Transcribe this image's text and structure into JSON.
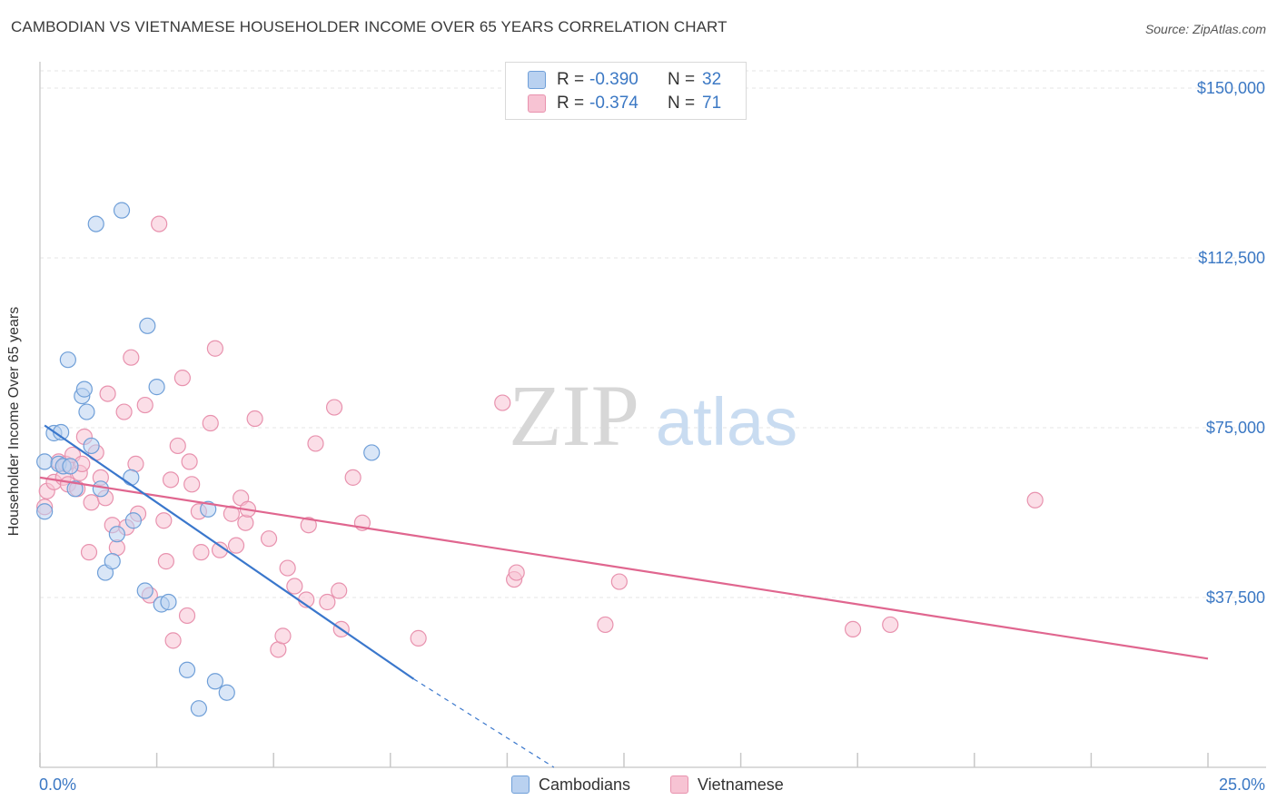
{
  "title": "CAMBODIAN VS VIETNAMESE HOUSEHOLDER INCOME OVER 65 YEARS CORRELATION CHART",
  "source": "Source: ZipAtlas.com",
  "watermark": {
    "zip": "ZIP",
    "atlas": "atlas"
  },
  "stats": {
    "r_label": "R =",
    "n_label": "N =",
    "rows": [
      {
        "r": "-0.390",
        "n": "32"
      },
      {
        "r": "-0.374",
        "n": "71"
      }
    ]
  },
  "colors": {
    "cambodians_fill": "#b9d1f0",
    "cambodians_stroke": "#6f9fd8",
    "cambodians_line": "#3a77cc",
    "vietnamese_fill": "#f7c3d3",
    "vietnamese_stroke": "#e892ae",
    "vietnamese_line": "#e0668f",
    "tick_label": "#3b78c4",
    "grid": "#e5e5e5"
  },
  "chart_data": {
    "type": "scatter",
    "title": "CAMBODIAN VS VIETNAMESE HOUSEHOLDER INCOME OVER 65 YEARS CORRELATION CHART",
    "xlabel": "",
    "ylabel": "Householder Income Over 65 years",
    "xlim": [
      0,
      25
    ],
    "ylim": [
      0,
      150000
    ],
    "x_tick_labels": [
      "0.0%",
      "25.0%"
    ],
    "y_ticks": [
      37500,
      75000,
      112500,
      150000
    ],
    "y_tick_labels": [
      "$37,500",
      "$75,000",
      "$112,500",
      "$150,000"
    ],
    "grid": true,
    "legend_position": "bottom-center",
    "series": [
      {
        "name": "Cambodians",
        "r": -0.39,
        "n": 32,
        "points": [
          [
            0.1,
            56500
          ],
          [
            0.1,
            67500
          ],
          [
            0.3,
            73800
          ],
          [
            0.4,
            67000
          ],
          [
            0.45,
            74000
          ],
          [
            0.5,
            66500
          ],
          [
            0.6,
            90000
          ],
          [
            0.65,
            66500
          ],
          [
            0.75,
            61500
          ],
          [
            0.9,
            82000
          ],
          [
            0.95,
            83500
          ],
          [
            1.0,
            78500
          ],
          [
            1.1,
            71000
          ],
          [
            1.2,
            120000
          ],
          [
            1.3,
            61500
          ],
          [
            1.4,
            43000
          ],
          [
            1.55,
            45500
          ],
          [
            1.65,
            51500
          ],
          [
            1.75,
            123000
          ],
          [
            1.95,
            64000
          ],
          [
            2.0,
            54500
          ],
          [
            2.25,
            39000
          ],
          [
            2.3,
            97500
          ],
          [
            2.5,
            84000
          ],
          [
            2.6,
            36000
          ],
          [
            2.75,
            36500
          ],
          [
            3.15,
            21500
          ],
          [
            3.4,
            13000
          ],
          [
            3.6,
            57000
          ],
          [
            3.75,
            19000
          ],
          [
            4.0,
            16500
          ],
          [
            7.1,
            69500
          ]
        ],
        "trend": {
          "x0": 0.1,
          "y0": 75500,
          "x1": 8.0,
          "y1": 19500,
          "dash_to_x": 11.0
        }
      },
      {
        "name": "Vietnamese",
        "r": -0.374,
        "n": 71,
        "points": [
          [
            0.1,
            57500
          ],
          [
            0.15,
            61000
          ],
          [
            0.3,
            63000
          ],
          [
            0.4,
            67500
          ],
          [
            0.5,
            64000
          ],
          [
            0.55,
            67000
          ],
          [
            0.6,
            62500
          ],
          [
            0.7,
            69000
          ],
          [
            0.8,
            61500
          ],
          [
            0.85,
            65000
          ],
          [
            0.9,
            67000
          ],
          [
            0.95,
            73000
          ],
          [
            1.05,
            47500
          ],
          [
            1.1,
            58500
          ],
          [
            1.2,
            69500
          ],
          [
            1.3,
            64000
          ],
          [
            1.4,
            59500
          ],
          [
            1.45,
            82500
          ],
          [
            1.55,
            53500
          ],
          [
            1.65,
            48500
          ],
          [
            1.8,
            78500
          ],
          [
            1.85,
            53000
          ],
          [
            1.95,
            90500
          ],
          [
            2.05,
            67000
          ],
          [
            2.1,
            56000
          ],
          [
            2.25,
            80000
          ],
          [
            2.35,
            38000
          ],
          [
            2.55,
            120000
          ],
          [
            2.65,
            54500
          ],
          [
            2.7,
            45500
          ],
          [
            2.8,
            63500
          ],
          [
            2.85,
            28000
          ],
          [
            2.95,
            71000
          ],
          [
            3.05,
            86000
          ],
          [
            3.15,
            33500
          ],
          [
            3.2,
            67500
          ],
          [
            3.25,
            62500
          ],
          [
            3.4,
            56500
          ],
          [
            3.45,
            47500
          ],
          [
            3.65,
            76000
          ],
          [
            3.75,
            92500
          ],
          [
            3.85,
            48000
          ],
          [
            4.1,
            56000
          ],
          [
            4.2,
            49000
          ],
          [
            4.3,
            59500
          ],
          [
            4.4,
            54000
          ],
          [
            4.45,
            57000
          ],
          [
            4.6,
            77000
          ],
          [
            4.9,
            50500
          ],
          [
            5.1,
            26000
          ],
          [
            5.2,
            29000
          ],
          [
            5.3,
            44000
          ],
          [
            5.45,
            40000
          ],
          [
            5.7,
            37000
          ],
          [
            5.75,
            53500
          ],
          [
            5.9,
            71500
          ],
          [
            6.15,
            36500
          ],
          [
            6.3,
            79500
          ],
          [
            6.4,
            39000
          ],
          [
            6.45,
            30500
          ],
          [
            6.7,
            64000
          ],
          [
            6.9,
            54000
          ],
          [
            8.1,
            28500
          ],
          [
            9.9,
            80500
          ],
          [
            10.15,
            41500
          ],
          [
            10.2,
            43000
          ],
          [
            12.1,
            31500
          ],
          [
            12.4,
            41000
          ],
          [
            17.4,
            30500
          ],
          [
            18.2,
            31500
          ],
          [
            21.3,
            59000
          ]
        ],
        "trend": {
          "x0": 0.0,
          "y0": 64000,
          "x1": 25.0,
          "y1": 24000
        }
      }
    ]
  }
}
